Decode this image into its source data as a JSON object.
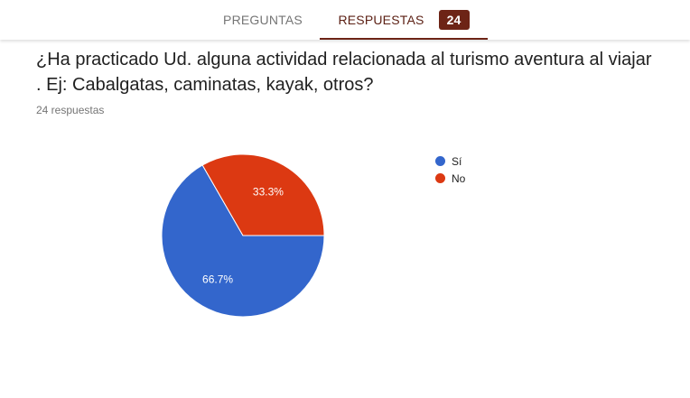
{
  "tabs": {
    "preguntas_label": "PREGUNTAS",
    "respuestas_label": "RESPUESTAS",
    "respuestas_count": "24"
  },
  "question": {
    "title": "¿Ha practicado Ud. alguna actividad relacionada al turismo aventura al viajar . Ej: Cabalgatas, caminatas, kayak, otros?",
    "response_count_text": "24 respuestas"
  },
  "colors": {
    "accent": "#6d2416",
    "si": "#3366cc",
    "no": "#dc3912"
  },
  "chart_data": {
    "type": "pie",
    "title": "",
    "slices": [
      {
        "label": "Sí",
        "value": 66.7,
        "percent_label": "66.7%",
        "color": "#3366cc"
      },
      {
        "label": "No",
        "value": 33.3,
        "percent_label": "33.3%",
        "color": "#dc3912"
      }
    ],
    "legend_position": "right"
  }
}
